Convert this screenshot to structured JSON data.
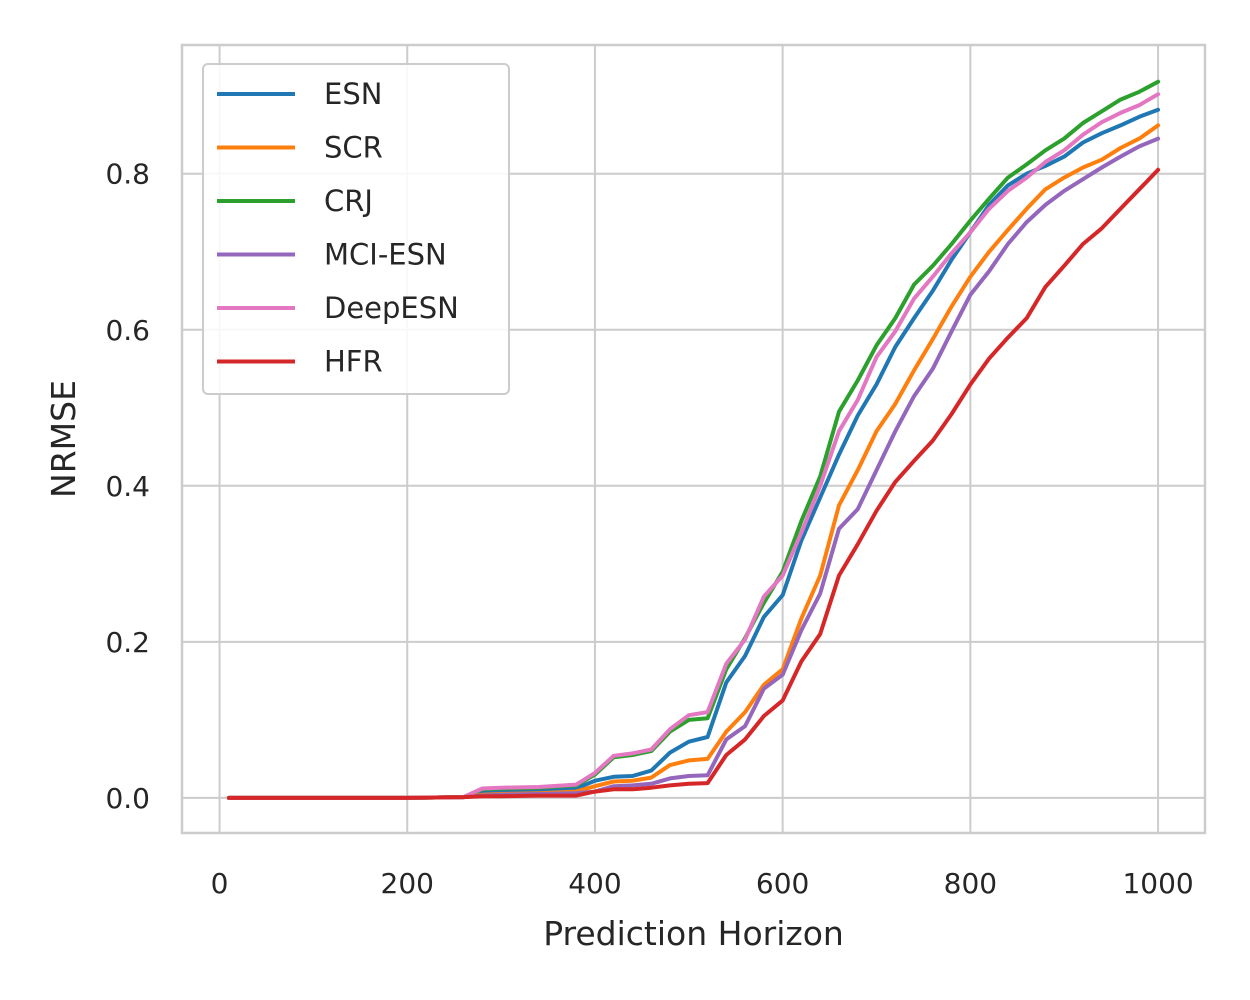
{
  "chart_data": {
    "type": "line",
    "title": "",
    "xlabel": "Prediction Horizon",
    "ylabel": "NRMSE",
    "xlim": [
      -40,
      1050
    ],
    "ylim": [
      -0.045,
      0.965
    ],
    "xticks": [
      0,
      200,
      400,
      600,
      800,
      1000
    ],
    "yticks": [
      0.0,
      0.2,
      0.4,
      0.6,
      0.8
    ],
    "xtick_labels": [
      "0",
      "200",
      "400",
      "600",
      "800",
      "1000"
    ],
    "ytick_labels": [
      "0.0",
      "0.2",
      "0.4",
      "0.6",
      "0.8"
    ],
    "grid": true,
    "legend_position": "top-left",
    "x": [
      10,
      100,
      200,
      260,
      280,
      300,
      340,
      380,
      400,
      420,
      440,
      460,
      480,
      500,
      520,
      540,
      560,
      580,
      600,
      620,
      640,
      660,
      680,
      700,
      720,
      740,
      760,
      780,
      800,
      820,
      840,
      860,
      880,
      900,
      920,
      940,
      960,
      980,
      1000
    ],
    "series": [
      {
        "name": "ESN",
        "color": "#1f77b4",
        "values": [
          0,
          0,
          0,
          0.001,
          0.008,
          0.009,
          0.01,
          0.012,
          0.022,
          0.027,
          0.028,
          0.035,
          0.058,
          0.072,
          0.078,
          0.148,
          0.182,
          0.232,
          0.26,
          0.33,
          0.385,
          0.44,
          0.49,
          0.53,
          0.578,
          0.615,
          0.65,
          0.69,
          0.725,
          0.76,
          0.785,
          0.8,
          0.81,
          0.822,
          0.84,
          0.852,
          0.862,
          0.873,
          0.882
        ]
      },
      {
        "name": "SCR",
        "color": "#ff7f0e",
        "values": [
          0,
          0,
          0,
          0.001,
          0.004,
          0.005,
          0.006,
          0.008,
          0.015,
          0.021,
          0.022,
          0.026,
          0.042,
          0.048,
          0.05,
          0.085,
          0.11,
          0.145,
          0.165,
          0.23,
          0.285,
          0.375,
          0.42,
          0.47,
          0.505,
          0.548,
          0.588,
          0.63,
          0.668,
          0.7,
          0.728,
          0.755,
          0.78,
          0.795,
          0.808,
          0.818,
          0.833,
          0.845,
          0.862
        ]
      },
      {
        "name": "CRJ",
        "color": "#2ca02c",
        "values": [
          0,
          0,
          0,
          0.001,
          0.011,
          0.012,
          0.013,
          0.016,
          0.03,
          0.052,
          0.055,
          0.06,
          0.085,
          0.1,
          0.102,
          0.165,
          0.205,
          0.25,
          0.29,
          0.355,
          0.412,
          0.495,
          0.535,
          0.58,
          0.615,
          0.658,
          0.682,
          0.71,
          0.74,
          0.768,
          0.795,
          0.812,
          0.83,
          0.845,
          0.865,
          0.88,
          0.895,
          0.905,
          0.918
        ]
      },
      {
        "name": "MCI-ESN",
        "color": "#9467bd",
        "values": [
          0,
          0,
          0,
          0.001,
          0.003,
          0.004,
          0.005,
          0.006,
          0.008,
          0.015,
          0.016,
          0.018,
          0.025,
          0.028,
          0.029,
          0.075,
          0.092,
          0.14,
          0.158,
          0.215,
          0.262,
          0.345,
          0.37,
          0.42,
          0.47,
          0.515,
          0.55,
          0.598,
          0.645,
          0.675,
          0.71,
          0.738,
          0.76,
          0.778,
          0.793,
          0.808,
          0.822,
          0.835,
          0.845
        ]
      },
      {
        "name": "DeepESN",
        "color": "#e377c2",
        "values": [
          0,
          0,
          0,
          0.001,
          0.012,
          0.013,
          0.014,
          0.017,
          0.032,
          0.054,
          0.057,
          0.062,
          0.088,
          0.106,
          0.11,
          0.172,
          0.203,
          0.258,
          0.285,
          0.34,
          0.4,
          0.47,
          0.51,
          0.565,
          0.598,
          0.64,
          0.668,
          0.698,
          0.725,
          0.755,
          0.778,
          0.795,
          0.815,
          0.83,
          0.85,
          0.866,
          0.878,
          0.888,
          0.902
        ]
      },
      {
        "name": "HFR",
        "color": "#d62728",
        "values": [
          0,
          0,
          0,
          0.001,
          0.002,
          0.002,
          0.003,
          0.003,
          0.008,
          0.011,
          0.011,
          0.013,
          0.016,
          0.018,
          0.019,
          0.055,
          0.075,
          0.105,
          0.125,
          0.175,
          0.21,
          0.285,
          0.325,
          0.368,
          0.405,
          0.432,
          0.458,
          0.492,
          0.53,
          0.563,
          0.59,
          0.615,
          0.655,
          0.682,
          0.71,
          0.73,
          0.755,
          0.78,
          0.805
        ]
      }
    ]
  }
}
